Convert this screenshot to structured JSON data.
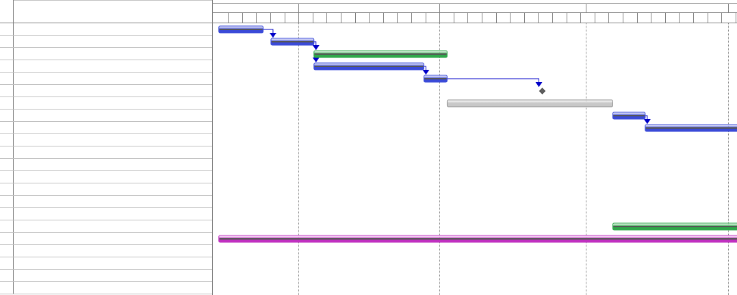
{
  "grid": {
    "header": {
      "number_label": "",
      "name_label": ""
    },
    "rows": [
      {
        "num": "",
        "name": ""
      },
      {
        "num": "",
        "name": ""
      },
      {
        "num": "",
        "name": ""
      },
      {
        "num": "",
        "name": ""
      },
      {
        "num": "",
        "name": ""
      },
      {
        "num": "",
        "name": ""
      },
      {
        "num": "",
        "name": ""
      },
      {
        "num": "",
        "name": ""
      },
      {
        "num": "",
        "name": ""
      },
      {
        "num": "",
        "name": ""
      },
      {
        "num": "",
        "name": ""
      },
      {
        "num": "",
        "name": ""
      },
      {
        "num": "",
        "name": ""
      },
      {
        "num": "",
        "name": ""
      },
      {
        "num": "",
        "name": ""
      },
      {
        "num": "",
        "name": ""
      },
      {
        "num": "",
        "name": ""
      },
      {
        "num": "",
        "name": ""
      },
      {
        "num": "",
        "name": ""
      },
      {
        "num": "",
        "name": ""
      },
      {
        "num": "",
        "name": ""
      },
      {
        "num": "",
        "name": ""
      }
    ]
  },
  "timescale": {
    "mid_labels": [
      "",
      "",
      "",
      "",
      ""
    ],
    "low_labels_count_note": ""
  },
  "colors": {
    "task_blue": "#3a4ad8",
    "task_green": "#2fa84a",
    "summary_gray": "#c8c8c8",
    "project_magenta": "#c030c0",
    "link_blue": "#0000c8",
    "milestone": "#606060",
    "grid_line": "#808080"
  },
  "gantt": {
    "tasks": [
      {
        "row": 0,
        "start_day": 0.35,
        "end_day": 3.5,
        "kind": "blue"
      },
      {
        "row": 1,
        "start_day": 4.05,
        "end_day": 7.1,
        "kind": "blue"
      },
      {
        "row": 2,
        "start_day": 7.1,
        "end_day": 16.55,
        "kind": "green"
      },
      {
        "row": 3,
        "start_day": 7.1,
        "end_day": 14.9,
        "kind": "blue"
      },
      {
        "row": 4,
        "start_day": 14.9,
        "end_day": 16.55,
        "kind": "blue"
      },
      {
        "row": 6,
        "start_day": 16.55,
        "end_day": 28.3,
        "kind": "gray"
      },
      {
        "row": 7,
        "start_day": 28.3,
        "end_day": 30.6,
        "kind": "blue"
      },
      {
        "row": 8,
        "start_day": 30.6,
        "end_day": 37.5,
        "kind": "blue"
      },
      {
        "row": 16,
        "start_day": 28.3,
        "end_day": 37.5,
        "kind": "green"
      },
      {
        "row": 17,
        "start_day": 0.35,
        "end_day": 37.5,
        "kind": "magenta"
      }
    ],
    "milestones": [
      {
        "row": 5,
        "day": 23.3
      }
    ],
    "links": [
      {
        "from_task": 0,
        "to_task": 1
      },
      {
        "from_task": 1,
        "to_task": 2
      },
      {
        "from_task": 2,
        "to_task": 3
      },
      {
        "from_task": 3,
        "to_task": 4
      },
      {
        "from_task": 4,
        "to_milestone": 0
      },
      {
        "from_task": 6,
        "to_task": 7
      }
    ]
  }
}
